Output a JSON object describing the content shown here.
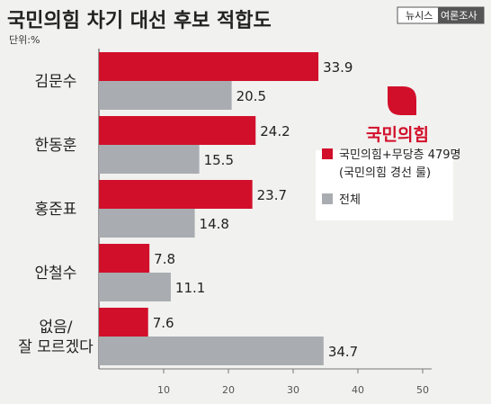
{
  "title": "국민의힘 차기 대선 후보 적합도",
  "unit": "단위:%",
  "source": {
    "part1": "뉴시스",
    "part2": "여론조사"
  },
  "logo": {
    "text": "국민의힘",
    "color": "#d20f2a"
  },
  "chart_data": {
    "type": "bar",
    "orientation": "horizontal",
    "categories": [
      "김문수",
      "한동훈",
      "홍준표",
      "안철수",
      "없음/\n잘 모르겠다"
    ],
    "series": [
      {
        "name": "국민의힘+무당층 479명\n(국민의힘 경선 룰)",
        "values": [
          33.9,
          24.2,
          23.7,
          7.8,
          7.6
        ],
        "color": "#d20f2a"
      },
      {
        "name": "전체",
        "values": [
          20.5,
          15.5,
          14.8,
          11.1,
          34.7
        ],
        "color": "#a9adb1"
      }
    ],
    "xticks": [
      10,
      20,
      30,
      40,
      50
    ],
    "xlim": [
      0,
      50
    ],
    "grid": false,
    "legend_position": "right"
  }
}
